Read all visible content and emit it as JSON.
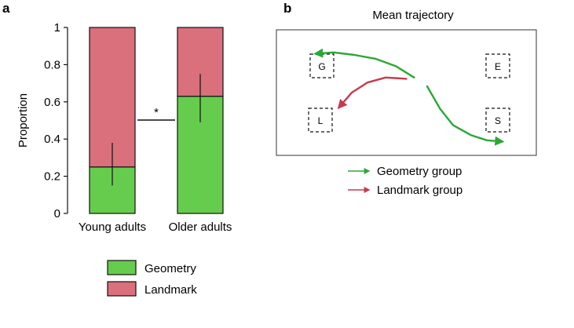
{
  "chart_data": [
    {
      "panel": "a",
      "type": "bar",
      "stacked": true,
      "categories": [
        "Young adults",
        "Older adults"
      ],
      "series": [
        {
          "name": "Geometry",
          "values": [
            0.25,
            0.63
          ],
          "color": "#66cc4d"
        },
        {
          "name": "Landmark",
          "values": [
            0.75,
            0.37
          ],
          "color": "#d9707c"
        }
      ],
      "error_bars": [
        {
          "center": 0.25,
          "low": 0.15,
          "high": 0.38
        },
        {
          "center": 0.63,
          "low": 0.49,
          "high": 0.75
        }
      ],
      "ylabel": "Proportion",
      "ylim": [
        0,
        1
      ],
      "yticks": [
        "0",
        "0.2",
        "0.4",
        "0.6",
        "0.8",
        "1"
      ],
      "ytick_values": [
        0,
        0.2,
        0.4,
        0.6,
        0.8,
        1
      ],
      "significance": "*",
      "legend_placement": "bottom"
    },
    {
      "panel": "b",
      "type": "line",
      "title": "Mean trajectory",
      "zones": [
        "G",
        "E",
        "L",
        "S"
      ],
      "series": [
        {
          "name": "Geometry group",
          "color": "#2aa836",
          "segments": [
            [
              [
                0.53,
                0.38
              ],
              [
                0.46,
                0.29
              ],
              [
                0.38,
                0.23
              ],
              [
                0.3,
                0.2
              ],
              [
                0.22,
                0.18
              ],
              [
                0.15,
                0.19
              ]
            ],
            [
              [
                0.58,
                0.45
              ],
              [
                0.63,
                0.63
              ],
              [
                0.68,
                0.76
              ],
              [
                0.75,
                0.84
              ],
              [
                0.81,
                0.88
              ],
              [
                0.87,
                0.89
              ]
            ]
          ]
        },
        {
          "name": "Landmark group",
          "color": "#c8394d",
          "segments": [
            [
              [
                0.5,
                0.39
              ],
              [
                0.42,
                0.38
              ],
              [
                0.35,
                0.42
              ],
              [
                0.29,
                0.5
              ],
              [
                0.24,
                0.62
              ]
            ]
          ]
        }
      ],
      "legend_placement": "bottom"
    }
  ]
}
